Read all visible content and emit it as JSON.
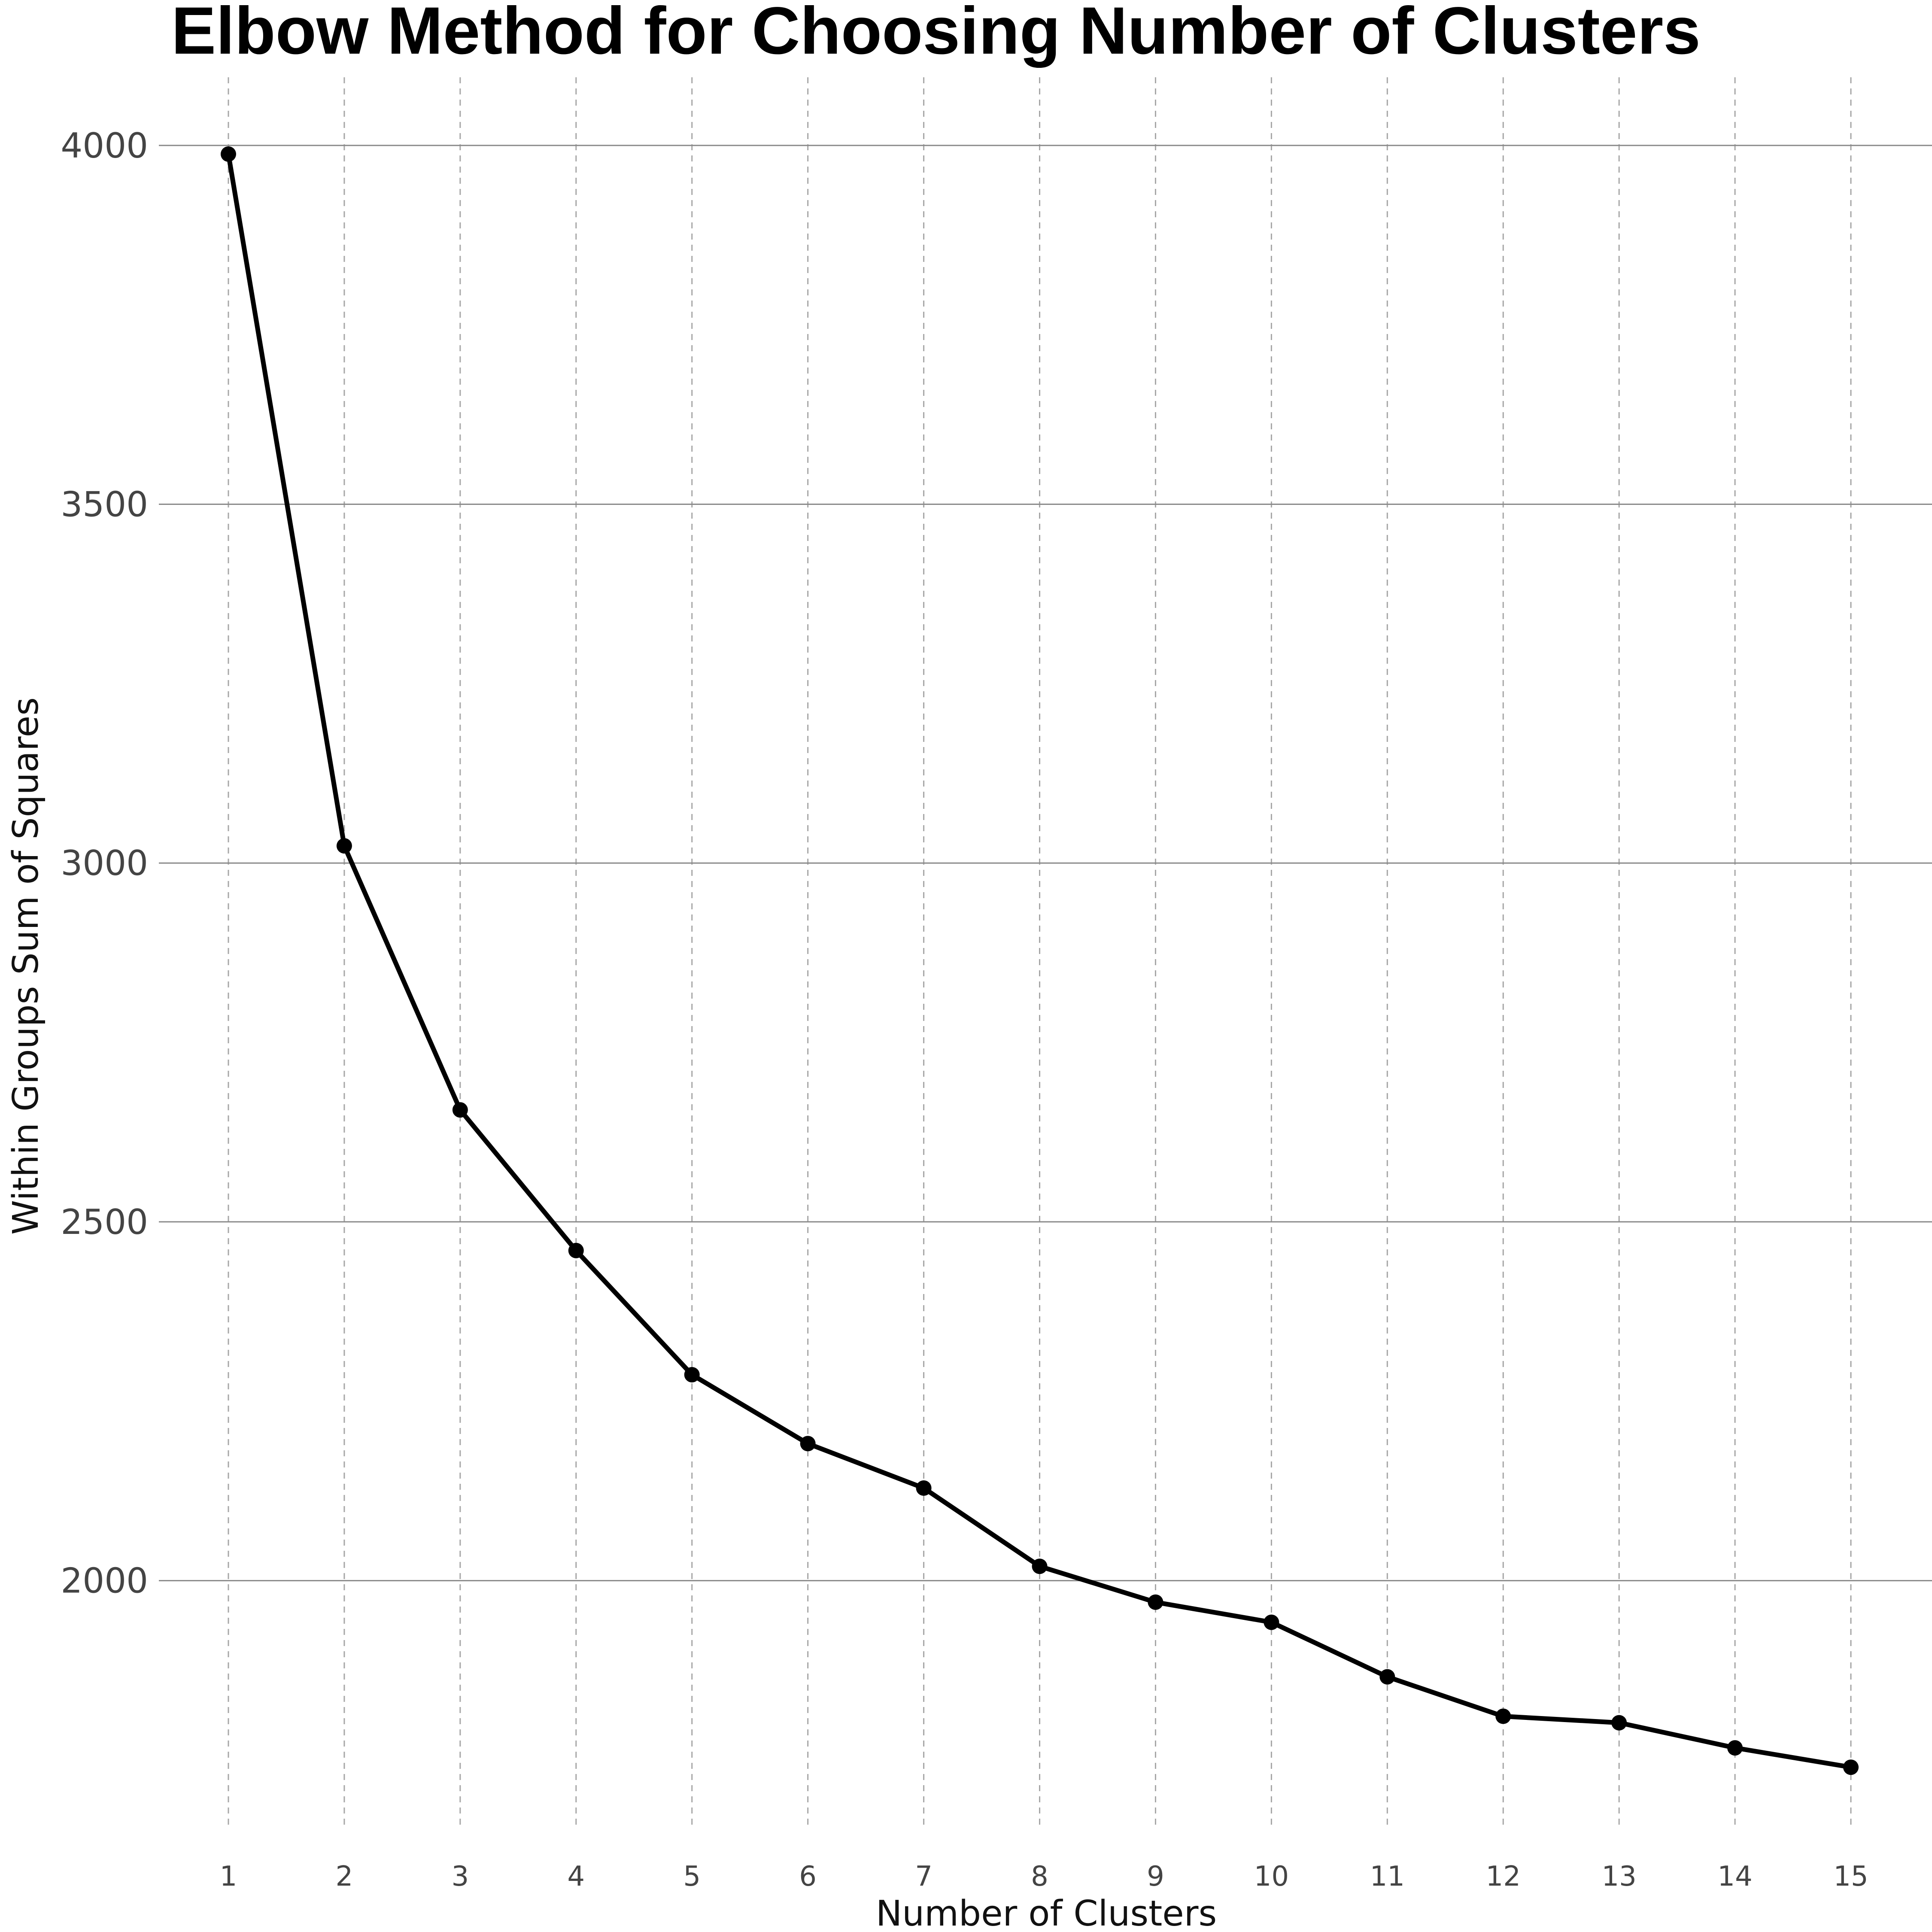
{
  "chart_data": {
    "type": "line",
    "title": "Elbow Method for Choosing Number of Clusters",
    "xlabel": "Number of Clusters",
    "ylabel": "Within Groups Sum of Squares",
    "x": [
      1,
      2,
      3,
      4,
      5,
      6,
      7,
      8,
      9,
      10,
      11,
      12,
      13,
      14,
      15
    ],
    "x_tick_labels": [
      "1",
      "2",
      "3",
      "4",
      "5",
      "6",
      "7",
      "8",
      "9",
      "10",
      "11",
      "12",
      "13",
      "14",
      "15"
    ],
    "y_ticks": [
      2000,
      2500,
      3000,
      3500,
      4000
    ],
    "y_tick_labels": [
      "2000",
      "2500",
      "3000",
      "3500",
      "4000"
    ],
    "series": [
      {
        "values": [
          3988,
          3024,
          2656,
          2460,
          2287,
          2191,
          2129,
          2020,
          1970,
          1942,
          1866,
          1811,
          1802,
          1767,
          1740
        ]
      }
    ],
    "xlim": [
      0.4,
      15.7
    ],
    "ylim": [
      1645,
      4095
    ],
    "grid": {
      "horizontal": "solid",
      "vertical": "dashed"
    },
    "legend": "none",
    "colors": {
      "line": "#000000",
      "grid_h": "#8a8a8a",
      "grid_v": "#a6a6a6"
    }
  }
}
